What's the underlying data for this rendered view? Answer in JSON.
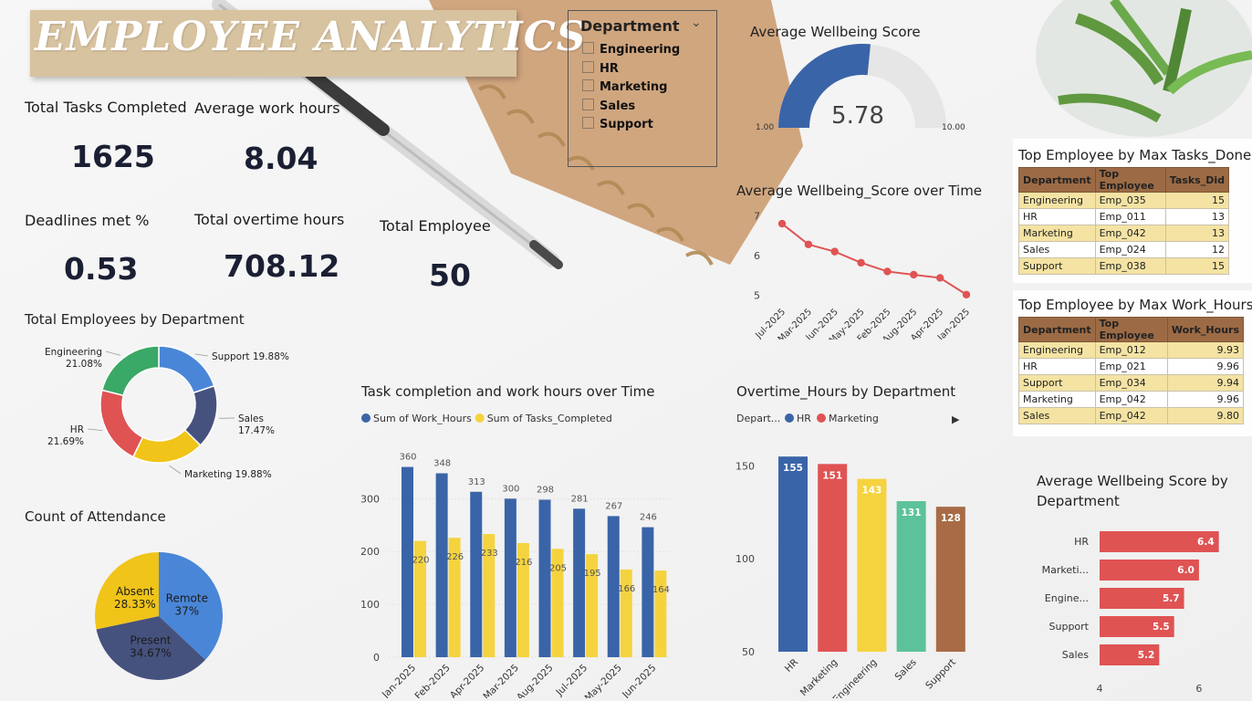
{
  "title": "EMPLOYEE ANALYTICS",
  "kpis": {
    "tasks_label": "Total Tasks Completed",
    "tasks_value": "1625",
    "hours_label": "Average work hours",
    "hours_value": "8.04",
    "deadlines_label": "Deadlines met %",
    "deadlines_value": "0.53",
    "overtime_label": "Total overtime hours",
    "overtime_value": "708.12",
    "employees_label": "Total Employee",
    "employees_value": "50"
  },
  "slicer": {
    "header": "Department",
    "items": [
      "Engineering",
      "HR",
      "Marketing",
      "Sales",
      "Support"
    ]
  },
  "gauge": {
    "title": "Average Wellbeing Score",
    "value": "5.78",
    "min": "1.00",
    "max": "10.00",
    "fraction": 0.531,
    "color": "#3a64a8"
  },
  "wellbeing_time": {
    "title": "Average Wellbeing_Score over Time"
  },
  "top_tasks": {
    "title": "Top Employee by Max Tasks_Done",
    "headers": [
      "Department",
      "Top Employee",
      "Tasks_Did"
    ],
    "rows": [
      [
        "Engineering",
        "Emp_035",
        "15"
      ],
      [
        "HR",
        "Emp_011",
        "13"
      ],
      [
        "Marketing",
        "Emp_042",
        "13"
      ],
      [
        "Sales",
        "Emp_024",
        "12"
      ],
      [
        "Support",
        "Emp_038",
        "15"
      ]
    ]
  },
  "top_hours": {
    "title": "Top Employee by Max Work_Hours",
    "headers": [
      "Department",
      "Top Employee",
      "Work_Hours"
    ],
    "rows": [
      [
        "Engineering",
        "Emp_012",
        "9.93"
      ],
      [
        "HR",
        "Emp_021",
        "9.96"
      ],
      [
        "Support",
        "Emp_034",
        "9.94"
      ],
      [
        "Marketing",
        "Emp_042",
        "9.96"
      ],
      [
        "Sales",
        "Emp_042",
        "9.80"
      ]
    ]
  },
  "dept_donut": {
    "title": "Total Employees  by Department"
  },
  "attendance": {
    "title": "Count of Attendance"
  },
  "task_hours": {
    "title": "Task completion and work hours over Time"
  },
  "overtime": {
    "title": "Overtime_Hours by Department",
    "legend_prefix": "Depart..."
  },
  "wellbeing_dept": {
    "title": "Average Wellbeing Score by Department"
  },
  "chart_data": [
    {
      "id": "wellbeing_time",
      "type": "line",
      "title": "Average Wellbeing_Score over Time",
      "categories": [
        "Jul-2025",
        "Mar-2025",
        "Jun-2025",
        "May-2025",
        "Feb-2025",
        "Aug-2025",
        "Apr-2025",
        "Jan-2025"
      ],
      "values": [
        6.8,
        6.28,
        6.1,
        5.82,
        5.6,
        5.52,
        5.44,
        5.02
      ],
      "yticks": [
        5,
        6,
        7
      ],
      "ylim": [
        4.9,
        7.1
      ],
      "color": "#e05353"
    },
    {
      "id": "dept_donut",
      "type": "pie",
      "title": "Total Employees  by Department",
      "slices": [
        {
          "name": "Support",
          "value": 19.88,
          "label": "Support 19.88%",
          "color": "#4a86d8"
        },
        {
          "name": "Sales",
          "value": 17.47,
          "label": "Sales\n17.47%",
          "color": "#46527e"
        },
        {
          "name": "Marketing",
          "value": 19.88,
          "label": "Marketing 19.88%",
          "color": "#f0c419"
        },
        {
          "name": "HR",
          "value": 21.69,
          "label": "HR\n21.69%",
          "color": "#e05353"
        },
        {
          "name": "Engineering",
          "value": 21.08,
          "label": "Engineering\n21.08%",
          "color": "#3aa866"
        }
      ]
    },
    {
      "id": "attendance",
      "type": "pie",
      "title": "Count of Attendance",
      "slices": [
        {
          "name": "Remote",
          "value": 37,
          "label": "Remote\n37%",
          "color": "#4a86d8"
        },
        {
          "name": "Present",
          "value": 34.67,
          "label": "Present\n34.67%",
          "color": "#46527e"
        },
        {
          "name": "Absent",
          "value": 28.33,
          "label": "Absent\n28.33%",
          "color": "#f0c419"
        }
      ]
    },
    {
      "id": "task_hours",
      "type": "bar",
      "title": "Task completion and work hours over Time",
      "categories": [
        "Jan-2025",
        "Feb-2025",
        "Apr-2025",
        "Mar-2025",
        "Aug-2025",
        "Jul-2025",
        "May-2025",
        "Jun-2025"
      ],
      "series": [
        {
          "name": "Sum of Work_Hours",
          "values": [
            360,
            348,
            313,
            300,
            298,
            281,
            267,
            246
          ],
          "color": "#3a64a8"
        },
        {
          "name": "Sum of Tasks_Completed",
          "values": [
            220,
            226,
            233,
            216,
            205,
            195,
            166,
            164
          ],
          "color": "#f5d33f"
        }
      ],
      "yticks": [
        0,
        100,
        200,
        300
      ],
      "ylim": [
        0,
        380
      ]
    },
    {
      "id": "overtime",
      "type": "bar",
      "title": "Overtime_Hours by Department",
      "legend": [
        "HR",
        "Marketing"
      ],
      "legend_colors": [
        "#3a64a8",
        "#e05353"
      ],
      "categories": [
        "HR",
        "Marketing",
        "Engineering",
        "Sales",
        "Support"
      ],
      "values": [
        155,
        151,
        143,
        131,
        128
      ],
      "colors": [
        "#3a64a8",
        "#e05353",
        "#f5d33f",
        "#5cc29a",
        "#a86b45"
      ],
      "yticks": [
        50,
        100,
        150
      ],
      "ylim": [
        50,
        160
      ]
    },
    {
      "id": "wellbeing_dept",
      "type": "bar",
      "orientation": "horizontal",
      "title": "Average Wellbeing Score by Department",
      "categories": [
        "HR",
        "Marketi...",
        "Engine...",
        "Support",
        "Sales"
      ],
      "values": [
        6.4,
        6.0,
        5.7,
        5.5,
        5.2
      ],
      "xticks": [
        4,
        6
      ],
      "xlim": [
        4,
        6.7
      ],
      "color": "#e05353"
    }
  ]
}
